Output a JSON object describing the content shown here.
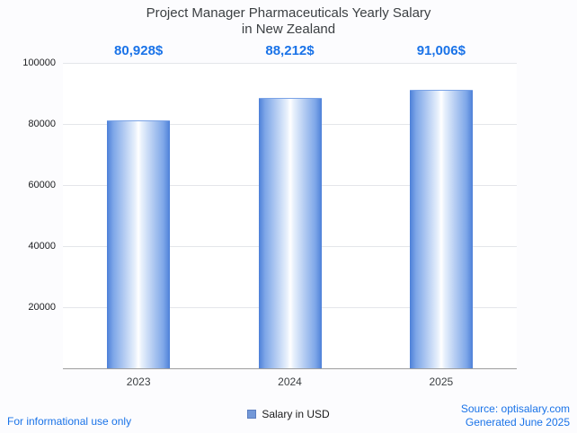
{
  "title": {
    "line1": "Project Manager Pharmaceuticals Yearly Salary",
    "line2": "in New Zealand"
  },
  "legend": {
    "label": "Salary in USD"
  },
  "footer": {
    "disclaimer": "For informational use only",
    "source": "Source: optisalary.com",
    "generated": "Generated June 2025"
  },
  "colors": {
    "accent_blue": "#1a73e8",
    "bar_edge_blue": "#4d80d8",
    "bar_center": "#ffffff",
    "gridline": "#e4e6ea",
    "axis_line": "#9e9e9e",
    "title_text": "#3c4043"
  },
  "chart_data": {
    "type": "bar",
    "title": "Project Manager Pharmaceuticals Yearly Salary in New Zealand",
    "categories": [
      "2023",
      "2024",
      "2025"
    ],
    "series": [
      {
        "name": "Salary in USD",
        "values": [
          80928,
          88212,
          91006
        ],
        "value_labels": [
          "80,928$",
          "88,212$",
          "91,006$"
        ]
      }
    ],
    "xlabel": "",
    "ylabel": "",
    "ylim": [
      0,
      100000
    ],
    "yticks": [
      20000,
      40000,
      60000,
      80000,
      100000
    ],
    "grid": true,
    "legend_position": "bottom"
  }
}
